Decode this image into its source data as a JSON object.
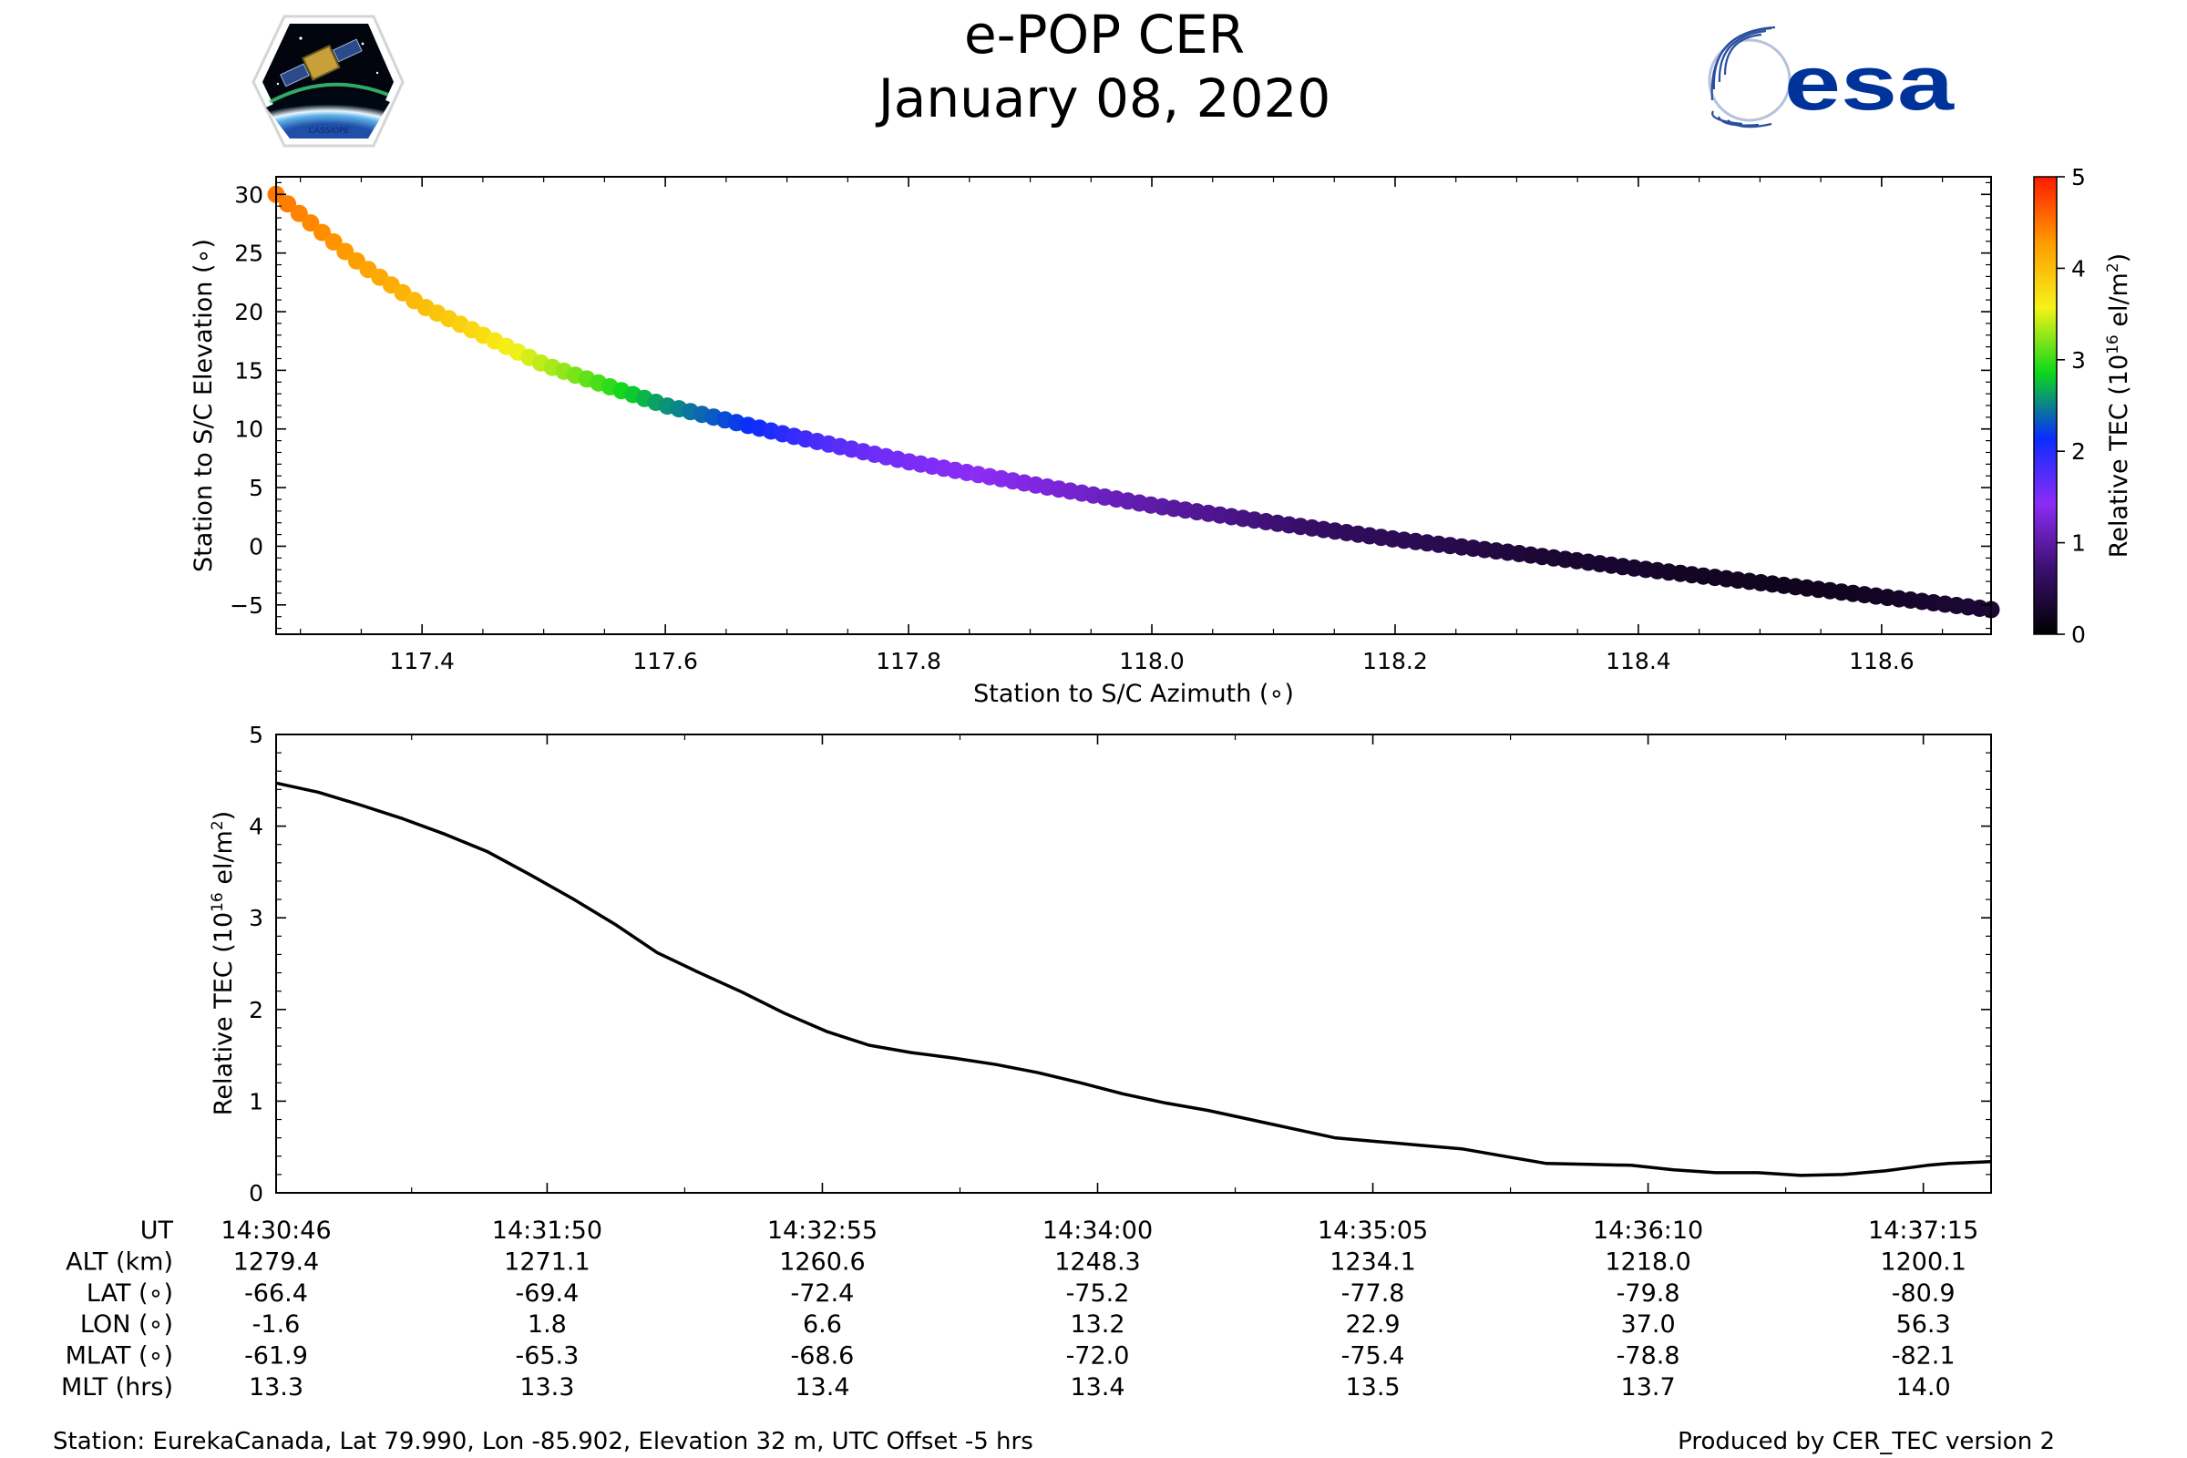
{
  "header": {
    "title": "e-POP CER",
    "date": "January 08, 2020",
    "left_logo": {
      "name": "cassiope-mission-logo",
      "text": "CASSIOPE"
    },
    "right_logo": {
      "name": "esa-logo",
      "text": "esa"
    }
  },
  "chart_data": [
    {
      "type": "scatter",
      "title": "",
      "xlabel": "Station to S/C Azimuth (∘)",
      "ylabel": "Station to S/C Elevation (∘)",
      "xlim": [
        117.28,
        118.69
      ],
      "ylim": [
        -7.5,
        31.5
      ],
      "xticks": [
        117.4,
        117.6,
        117.8,
        118.0,
        118.2,
        118.4,
        118.6
      ],
      "yticks": [
        -5,
        0,
        5,
        10,
        15,
        20,
        25,
        30
      ],
      "color_by": "relative_tec",
      "path_anchors": [
        {
          "az": 117.28,
          "el": 30.0
        },
        {
          "az": 117.35,
          "el": 24.0
        },
        {
          "az": 117.4,
          "el": 20.5
        },
        {
          "az": 117.5,
          "el": 15.5
        },
        {
          "az": 117.6,
          "el": 12.0
        },
        {
          "az": 117.7,
          "el": 9.5
        },
        {
          "az": 117.8,
          "el": 7.2
        },
        {
          "az": 117.9,
          "el": 5.3
        },
        {
          "az": 118.0,
          "el": 3.5
        },
        {
          "az": 118.1,
          "el": 2.0
        },
        {
          "az": 118.2,
          "el": 0.6
        },
        {
          "az": 118.3,
          "el": -0.6
        },
        {
          "az": 118.4,
          "el": -1.9
        },
        {
          "az": 118.5,
          "el": -3.1
        },
        {
          "az": 118.6,
          "el": -4.3
        },
        {
          "az": 118.69,
          "el": -5.4
        }
      ],
      "colorbar": {
        "label": "Relative TEC (10",
        "label_exp": "16",
        "label_unit": " el/m",
        "label_unit_exp": "2",
        "label_close": ")",
        "range": [
          0,
          5
        ],
        "ticks": [
          0,
          1,
          2,
          3,
          4,
          5
        ],
        "colors": [
          "#000000",
          "#3b0f70",
          "#8c2cf5",
          "#0a2cff",
          "#0cd81a",
          "#f6f218",
          "#ff9a00",
          "#ff1a00"
        ]
      }
    },
    {
      "type": "line",
      "title": "",
      "xlabel": "",
      "ylabel": "Relative TEC (10",
      "ylabel_exp": "16",
      "ylabel_unit": " el/m",
      "ylabel_unit_exp": "2",
      "ylabel_close": ")",
      "xlim": [
        0,
        405
      ],
      "ylim": [
        0,
        5
      ],
      "yticks": [
        0,
        1,
        2,
        3,
        4,
        5
      ],
      "x_unit": "seconds since 14:30:46",
      "series": [
        {
          "name": "Relative TEC",
          "x": [
            0,
            10,
            20,
            30,
            40,
            50,
            60,
            70,
            80,
            90,
            100,
            110,
            120,
            130,
            140,
            150,
            160,
            170,
            180,
            190,
            200,
            210,
            220,
            230,
            240,
            250,
            260,
            270,
            280,
            290,
            300,
            310,
            320,
            330,
            340,
            350,
            360,
            370,
            375,
            380,
            385,
            390,
            395,
            400,
            405
          ],
          "values": [
            4.47,
            4.37,
            4.23,
            4.08,
            3.91,
            3.72,
            3.47,
            3.21,
            2.93,
            2.62,
            2.4,
            2.19,
            1.96,
            1.76,
            1.61,
            1.53,
            1.47,
            1.4,
            1.31,
            1.2,
            1.08,
            0.98,
            0.9,
            0.8,
            0.7,
            0.6,
            0.56,
            0.52,
            0.48,
            0.4,
            0.32,
            0.31,
            0.3,
            0.25,
            0.22,
            0.22,
            0.19,
            0.2,
            0.22,
            0.24,
            0.27,
            0.3,
            0.32,
            0.33,
            0.34
          ]
        }
      ]
    }
  ],
  "table": {
    "row_labels": [
      "UT",
      "ALT (km)",
      "LAT (∘)",
      "LON (∘)",
      "MLAT (∘)",
      "MLT (hrs)"
    ],
    "columns": [
      {
        "t": 0,
        "values": [
          "14:30:46",
          "1279.4",
          "-66.4",
          "-1.6",
          "-61.9",
          "13.3"
        ]
      },
      {
        "t": 64,
        "values": [
          "14:31:50",
          "1271.1",
          "-69.4",
          "1.8",
          "-65.3",
          "13.3"
        ]
      },
      {
        "t": 129,
        "values": [
          "14:32:55",
          "1260.6",
          "-72.4",
          "6.6",
          "-68.6",
          "13.4"
        ]
      },
      {
        "t": 194,
        "values": [
          "14:34:00",
          "1248.3",
          "-75.2",
          "13.2",
          "-72.0",
          "13.4"
        ]
      },
      {
        "t": 259,
        "values": [
          "14:35:05",
          "1234.1",
          "-77.8",
          "22.9",
          "-75.4",
          "13.5"
        ]
      },
      {
        "t": 324,
        "values": [
          "14:36:10",
          "1218.0",
          "-79.8",
          "37.0",
          "-78.8",
          "13.7"
        ]
      },
      {
        "t": 389,
        "values": [
          "14:37:15",
          "1200.1",
          "-80.9",
          "56.3",
          "-82.1",
          "14.0"
        ]
      }
    ]
  },
  "footer": {
    "station": "Station: EurekaCanada, Lat 79.990, Lon -85.902, Elevation 32 m, UTC Offset -5 hrs",
    "produced_by": "Produced by CER_TEC version 2"
  }
}
